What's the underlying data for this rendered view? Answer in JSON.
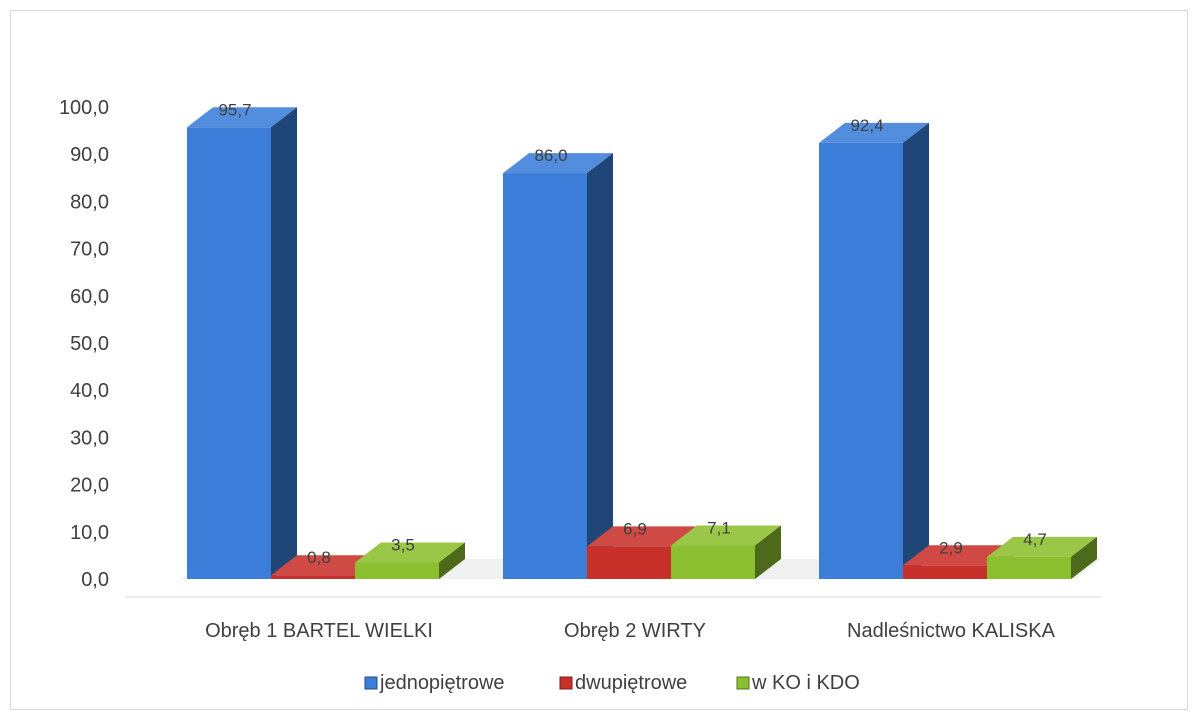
{
  "chart_data": {
    "type": "bar",
    "categories": [
      "Obręb 1 BARTEL WIELKI",
      "Obręb 2 WIRTY",
      "Nadleśnictwo KALISKA"
    ],
    "series": [
      {
        "name": "jednopiętrowe",
        "values": [
          95.7,
          86.0,
          92.4
        ],
        "labels": [
          "95,7",
          "86,0",
          "92,4"
        ],
        "color": "#3b7dd8"
      },
      {
        "name": "dwupiętrowe",
        "values": [
          0.8,
          6.9,
          2.9
        ],
        "labels": [
          "0,8",
          "6,9",
          "2,9"
        ],
        "color": "#c8312a"
      },
      {
        "name": "w KO i KDO",
        "values": [
          3.5,
          7.1,
          4.7
        ],
        "labels": [
          "3,5",
          "7,1",
          "4,7"
        ],
        "color": "#8cbf2f"
      }
    ],
    "yticks": [
      "0,0",
      "10,0",
      "20,0",
      "30,0",
      "40,0",
      "50,0",
      "60,0",
      "70,0",
      "80,0",
      "90,0",
      "100,0"
    ],
    "ylim": [
      0,
      100
    ],
    "grid": false,
    "legend_position": "bottom",
    "style": "3d-column"
  }
}
